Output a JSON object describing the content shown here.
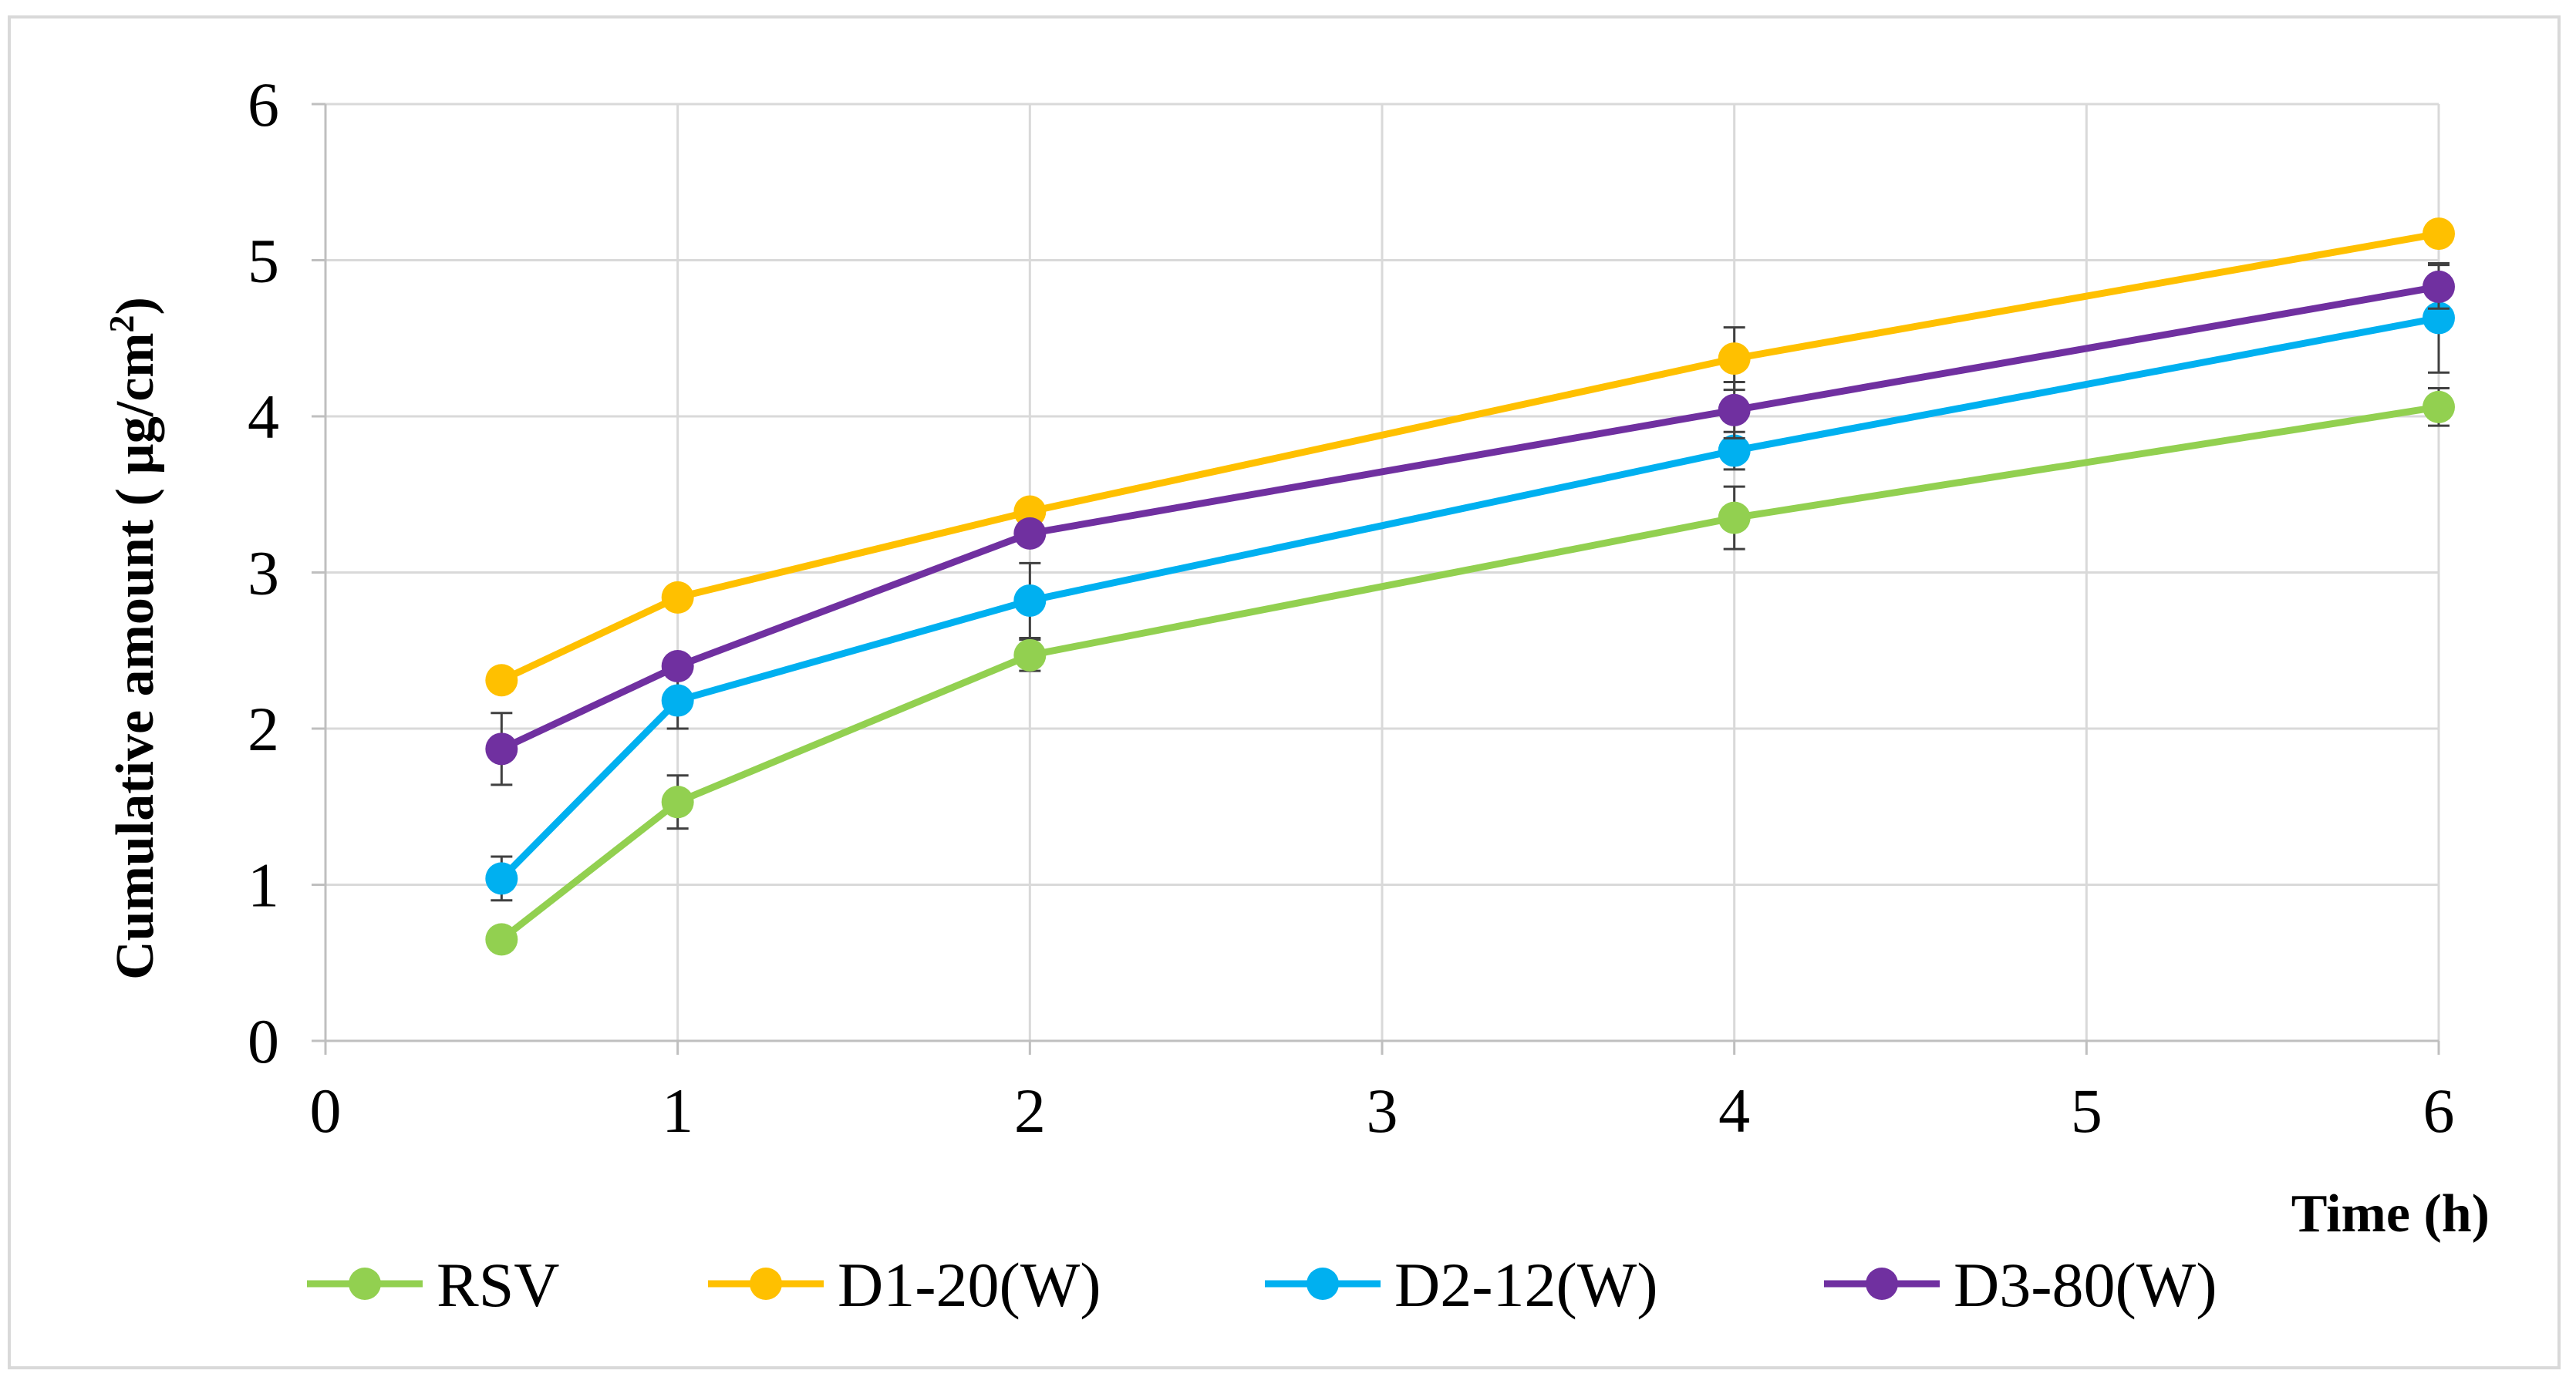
{
  "chart_data": {
    "type": "line",
    "title": "",
    "xlabel": "Time (h)",
    "ylabel": {
      "prefix": "Cumulative amount ( µg/cm",
      "superscript": "2",
      "suffix": ")"
    },
    "xlim": [
      0,
      6
    ],
    "ylim": [
      0,
      6
    ],
    "x_ticks": [
      0,
      1,
      2,
      3,
      4,
      5,
      6
    ],
    "y_ticks": [
      0,
      1,
      2,
      3,
      4,
      5,
      6
    ],
    "grid": true,
    "legend_position": "bottom",
    "x": [
      0.5,
      1,
      2,
      4,
      6
    ],
    "series": [
      {
        "name": "RSV",
        "color": "#92d050",
        "values": [
          0.65,
          1.53,
          2.47,
          3.35,
          4.06
        ],
        "errors": [
          0.04,
          0.17,
          0.1,
          0.2,
          0.12
        ]
      },
      {
        "name": "D1-20(W)",
        "color": "#ffc000",
        "values": [
          2.31,
          2.84,
          3.39,
          4.37,
          5.17
        ],
        "errors": [
          0.07,
          0.04,
          0.05,
          0.2,
          0.05
        ]
      },
      {
        "name": "D2-12(W)",
        "color": "#00b0f0",
        "values": [
          1.04,
          2.18,
          2.82,
          3.78,
          4.63
        ],
        "errors": [
          0.14,
          0.18,
          0.24,
          0.12,
          0.35
        ]
      },
      {
        "name": "D3-80(W)",
        "color": "#7030a0",
        "values": [
          1.87,
          2.4,
          3.25,
          4.04,
          4.83
        ],
        "errors": [
          0.23,
          0.04,
          0.06,
          0.18,
          0.14
        ]
      }
    ]
  }
}
